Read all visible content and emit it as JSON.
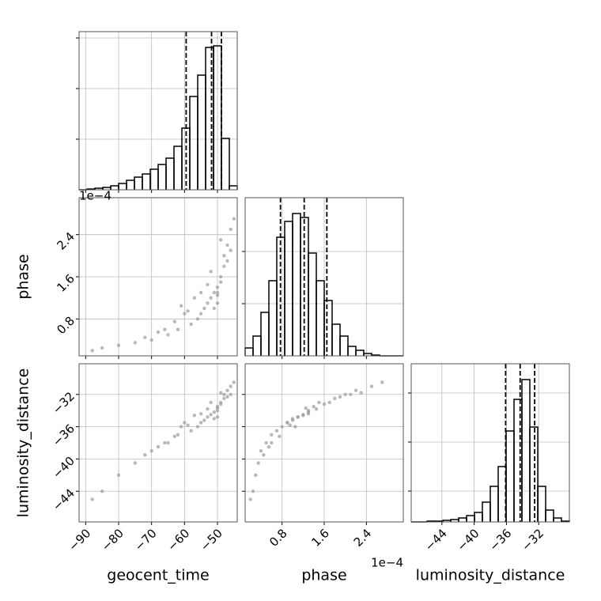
{
  "chart_data": {
    "type": "corner",
    "color": "#000000",
    "point_color": "#9a9a9a",
    "grid_color": "#bbbbbb",
    "grid": true,
    "parameters": [
      {
        "name": "geocent_time",
        "lim": [
          -92,
          -44
        ],
        "ticks": [
          {
            "value": -90,
            "label": "−90"
          },
          {
            "value": -80,
            "label": "−80"
          },
          {
            "value": -70,
            "label": "−70"
          },
          {
            "value": -60,
            "label": "−60"
          },
          {
            "value": -50,
            "label": "−50"
          }
        ],
        "quantiles": [
          -59.5,
          -51.8,
          -48.8
        ],
        "hist": {
          "bins": [
            -92,
            -89.6,
            -87.2,
            -84.8,
            -82.4,
            -80,
            -77.6,
            -75.2,
            -72.8,
            -70.4,
            -68,
            -65.6,
            -63.2,
            -60.8,
            -58.4,
            -56,
            -53.6,
            -51.2,
            -48.8,
            -46.4,
            -44
          ],
          "counts": [
            0,
            1,
            2,
            3,
            5,
            8,
            12,
            16,
            20,
            26,
            32,
            40,
            55,
            78,
            118,
            145,
            180,
            182,
            65,
            5
          ],
          "ylim": [
            0,
            200
          ],
          "yticks": [
            64,
            128,
            192
          ]
        }
      },
      {
        "name": "phase",
        "lim": [
          0.1,
          3.1
        ],
        "offset_text": "1e−4",
        "ticks": [
          0.8,
          1.6,
          2.4
        ],
        "quantiles": [
          0.77,
          1.22,
          1.65
        ],
        "hist": {
          "bins": [
            0.1,
            0.25,
            0.4,
            0.55,
            0.7,
            0.85,
            1.0,
            1.15,
            1.3,
            1.45,
            1.6,
            1.75,
            1.9,
            2.05,
            2.2,
            2.35,
            2.5,
            2.65,
            2.8,
            2.95,
            3.1
          ],
          "counts": [
            10,
            25,
            55,
            95,
            150,
            170,
            180,
            175,
            130,
            95,
            70,
            40,
            25,
            12,
            7,
            3,
            1,
            0,
            0,
            0
          ],
          "ylim": [
            0,
            200
          ],
          "yticks": [
            66,
            132
          ]
        }
      },
      {
        "name": "luminosity_distance",
        "lim": [
          -47.8,
          -28.2
        ],
        "ticks": [
          {
            "value": -44,
            "label": "−44"
          },
          {
            "value": -40,
            "label": "−40"
          },
          {
            "value": -36,
            "label": "−36"
          },
          {
            "value": -32,
            "label": "−32"
          }
        ],
        "quantiles": [
          -36.1,
          -34.3,
          -32.5
        ],
        "hist": {
          "bins": [
            -47.8,
            -46.82,
            -45.84,
            -44.86,
            -43.88,
            -42.9,
            -41.92,
            -40.94,
            -39.96,
            -38.98,
            -38,
            -37.02,
            -36.04,
            -35.06,
            -34.08,
            -33.1,
            -32.12,
            -31.14,
            -30.16,
            -29.18,
            -28.2
          ],
          "counts": [
            0,
            0,
            1,
            1,
            2,
            3,
            5,
            8,
            12,
            25,
            45,
            70,
            115,
            155,
            180,
            120,
            45,
            15,
            5,
            1
          ],
          "ylim": [
            0,
            200
          ],
          "yticks": [
            39,
            101,
            163
          ]
        }
      }
    ],
    "samples": {
      "geocent_time": [
        -50,
        -49,
        -52,
        -48,
        -51,
        -55,
        -47,
        -50,
        -53,
        -58,
        -62,
        -46,
        -49,
        -56,
        -65,
        -70,
        -60,
        -48,
        -51,
        -54,
        -45,
        -75,
        -80,
        -68,
        -57,
        -52,
        -63,
        -47,
        -85,
        -50,
        -59,
        -53,
        -72,
        -49,
        -66,
        -55,
        -88,
        -61,
        -46,
        -50
      ],
      "phase": [
        1.3,
        1.5,
        1.2,
        1.8,
        1.0,
        0.9,
        2.2,
        1.4,
        1.1,
        0.7,
        0.6,
        2.5,
        1.6,
        0.8,
        0.5,
        0.4,
        0.9,
        2.0,
        1.3,
        1.0,
        2.7,
        0.35,
        0.3,
        0.55,
        1.2,
        1.7,
        0.75,
        1.9,
        0.25,
        1.1,
        0.95,
        1.45,
        0.45,
        2.3,
        0.6,
        1.3,
        0.2,
        1.05,
        2.1,
        1.25
      ],
      "luminosity_distance": [
        -34,
        -33,
        -34.5,
        -32.5,
        -35,
        -35.5,
        -31.5,
        -33.5,
        -34.8,
        -36.5,
        -37,
        -31,
        -33.2,
        -36,
        -38,
        -39,
        -35.5,
        -32,
        -34.2,
        -35.2,
        -30.5,
        -40.5,
        -42,
        -38.5,
        -34.6,
        -33,
        -37.2,
        -32.3,
        -44,
        -34.8,
        -35.8,
        -33.8,
        -39.5,
        -31.8,
        -38,
        -34.4,
        -45,
        -36,
        -32,
        -33.7
      ]
    }
  }
}
